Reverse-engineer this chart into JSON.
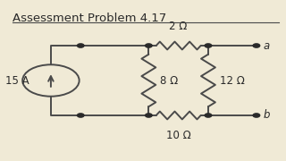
{
  "title": "Assessment Problem 4.17",
  "bg_color": "#f0ead6",
  "line_color": "#4a4a4a",
  "dot_color": "#2a2a2a",
  "text_color": "#2a2a2a",
  "title_fontsize": 9.5,
  "label_fontsize": 8.5,
  "current_source": "15 A",
  "resistors": {
    "R1": "2 Ω",
    "R2": "8 Ω",
    "R3": "10 Ω",
    "R4": "12 Ω"
  },
  "terminals": [
    "a",
    "b"
  ]
}
